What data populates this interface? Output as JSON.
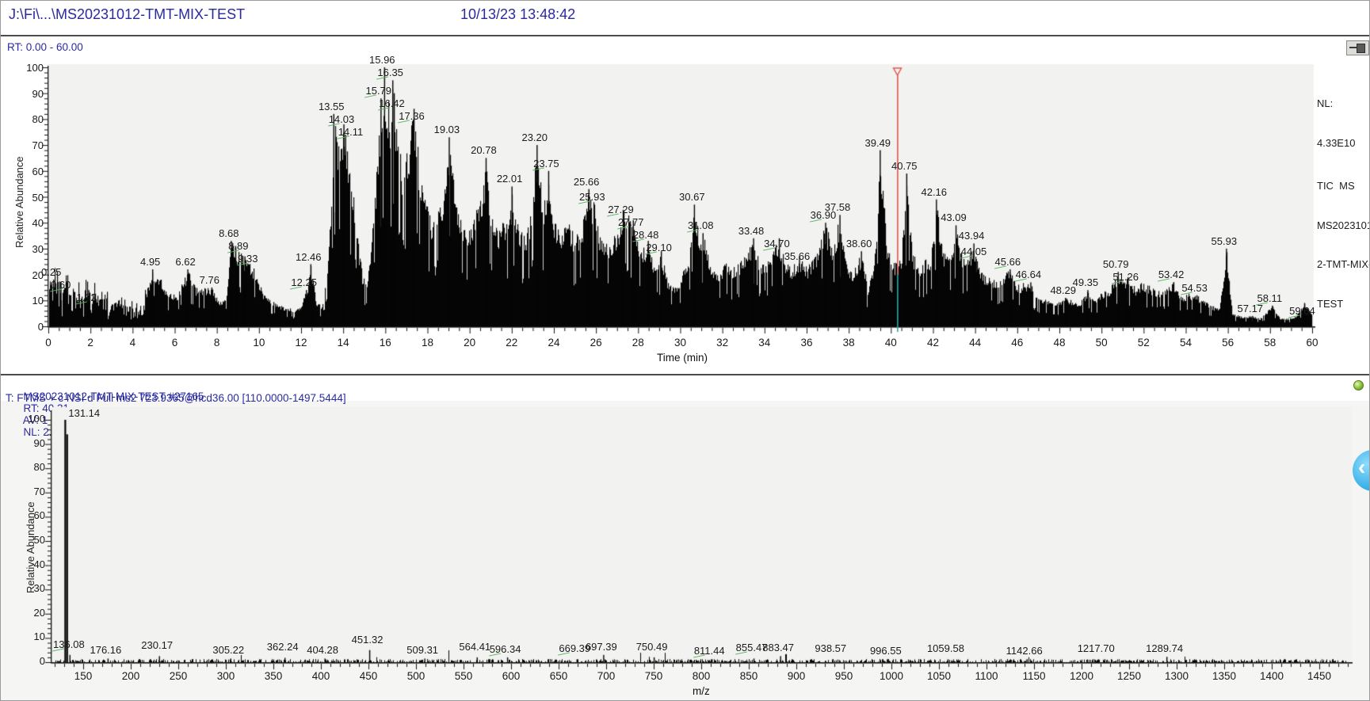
{
  "window": {
    "title_path": "J:\\Fi\\...\\MS20231012-TMT-MIX-TEST",
    "datetime": "10/13/23 13:48:42"
  },
  "colors": {
    "accent_text": "#2a2aa0",
    "peak": "#050505",
    "marker_red": "#e0564c",
    "marker_teal": "#2ba8a6",
    "label_green": "#55b15c",
    "plot_bg": "#f2f2f0",
    "axis": "#111111"
  },
  "chart_data": [
    {
      "id": "tic-chromatogram",
      "type": "area",
      "range_label": "RT: 0.00 - 60.00",
      "xlabel": "Time (min)",
      "ylabel": "Relative Abundance",
      "xlim": [
        0,
        60
      ],
      "ylim": [
        0,
        100
      ],
      "x_major": 2,
      "x_minor": 0.5,
      "y_major": 10,
      "y_minor": 2,
      "nl_lines": [
        "NL:",
        "4.33E10",
        "TIC  MS",
        "MS2023101",
        "2-TMT-MIX-",
        "TEST"
      ],
      "marker_rt": 40.31,
      "peaks": [
        {
          "t": 0.25,
          "h": 18
        },
        {
          "t": 0.6,
          "h": 17,
          "g": 1
        },
        {
          "t": 1.92,
          "h": 14,
          "g": 1
        },
        {
          "t": 4.95,
          "h": 22
        },
        {
          "t": 6.62,
          "h": 22
        },
        {
          "t": 7.76,
          "h": 15
        },
        {
          "t": 8.68,
          "h": 33
        },
        {
          "t": 8.89,
          "h": 31,
          "g": 1
        },
        {
          "t": 9.33,
          "h": 27,
          "g": 1
        },
        {
          "t": 12.25,
          "h": 14,
          "g": 1
        },
        {
          "t": 12.46,
          "h": 24
        },
        {
          "t": 13.55,
          "h": 82
        },
        {
          "t": 14.03,
          "h": 78,
          "g": 1
        },
        {
          "t": 14.11,
          "h": 74,
          "g": 1
        },
        {
          "t": 15.79,
          "h": 88,
          "g": 1
        },
        {
          "t": 15.96,
          "h": 100
        },
        {
          "t": 16.35,
          "h": 95,
          "g": 1
        },
        {
          "t": 16.42,
          "h": 90,
          "g": 1
        },
        {
          "t": 17.36,
          "h": 84,
          "g": 1
        },
        {
          "t": 19.03,
          "h": 73
        },
        {
          "t": 20.78,
          "h": 65
        },
        {
          "t": 22.01,
          "h": 54
        },
        {
          "t": 23.2,
          "h": 70
        },
        {
          "t": 23.75,
          "h": 60,
          "g": 1
        },
        {
          "t": 25.66,
          "h": 53
        },
        {
          "t": 25.93,
          "h": 47,
          "g": 1
        },
        {
          "t": 27.29,
          "h": 45,
          "g": 1
        },
        {
          "t": 27.77,
          "h": 41,
          "g": 1
        },
        {
          "t": 28.48,
          "h": 33,
          "g": 1
        },
        {
          "t": 29.1,
          "h": 29,
          "g": 1
        },
        {
          "t": 30.67,
          "h": 47
        },
        {
          "t": 31.08,
          "h": 36,
          "g": 1
        },
        {
          "t": 33.48,
          "h": 34
        },
        {
          "t": 34.7,
          "h": 34,
          "g": 1
        },
        {
          "t": 35.66,
          "h": 27
        },
        {
          "t": 36.9,
          "h": 40,
          "g": 1
        },
        {
          "t": 37.58,
          "h": 43
        },
        {
          "t": 38.6,
          "h": 29
        },
        {
          "t": 39.49,
          "h": 68
        },
        {
          "t": 40.75,
          "h": 59
        },
        {
          "t": 42.16,
          "h": 49
        },
        {
          "t": 43.09,
          "h": 39
        },
        {
          "t": 43.94,
          "h": 32
        },
        {
          "t": 44.05,
          "h": 26,
          "g": 1
        },
        {
          "t": 45.66,
          "h": 22,
          "g": 1
        },
        {
          "t": 46.64,
          "h": 17,
          "g": 1
        },
        {
          "t": 48.29,
          "h": 11
        },
        {
          "t": 49.35,
          "h": 14
        },
        {
          "t": 50.79,
          "h": 21
        },
        {
          "t": 51.26,
          "h": 19,
          "g": 1
        },
        {
          "t": 53.42,
          "h": 17,
          "g": 1
        },
        {
          "t": 54.53,
          "h": 12,
          "g": 1
        },
        {
          "t": 55.93,
          "h": 30
        },
        {
          "t": 57.17,
          "h": 4
        },
        {
          "t": 58.11,
          "h": 8,
          "g": 1
        },
        {
          "t": 59.64,
          "h": 9,
          "g": 1
        }
      ],
      "envelope": [
        [
          0,
          18
        ],
        [
          0.25,
          18
        ],
        [
          0.6,
          17
        ],
        [
          1,
          15
        ],
        [
          1.5,
          14
        ],
        [
          1.92,
          14
        ],
        [
          2.5,
          12
        ],
        [
          3,
          10
        ],
        [
          3.5,
          9
        ],
        [
          4,
          8
        ],
        [
          4.4,
          7
        ],
        [
          4.95,
          22
        ],
        [
          5.3,
          19
        ],
        [
          5.7,
          13
        ],
        [
          6.1,
          12
        ],
        [
          6.62,
          22
        ],
        [
          7,
          15
        ],
        [
          7.76,
          15
        ],
        [
          8.1,
          9
        ],
        [
          8.45,
          13
        ],
        [
          8.68,
          33
        ],
        [
          8.89,
          31
        ],
        [
          9.33,
          27
        ],
        [
          9.8,
          22
        ],
        [
          10.2,
          13
        ],
        [
          10.6,
          10
        ],
        [
          11,
          8
        ],
        [
          11.5,
          7
        ],
        [
          11.9,
          7
        ],
        [
          12.25,
          14
        ],
        [
          12.46,
          24
        ],
        [
          12.7,
          10
        ],
        [
          13,
          8
        ],
        [
          13.3,
          28
        ],
        [
          13.55,
          82
        ],
        [
          13.7,
          76
        ],
        [
          13.85,
          68
        ],
        [
          14.03,
          78
        ],
        [
          14.11,
          74
        ],
        [
          14.3,
          63
        ],
        [
          14.5,
          53
        ],
        [
          14.7,
          33
        ],
        [
          14.9,
          20
        ],
        [
          15.1,
          16
        ],
        [
          15.3,
          28
        ],
        [
          15.5,
          52
        ],
        [
          15.79,
          88
        ],
        [
          15.96,
          100
        ],
        [
          16.1,
          88
        ],
        [
          16.25,
          86
        ],
        [
          16.35,
          95
        ],
        [
          16.42,
          90
        ],
        [
          16.6,
          76
        ],
        [
          16.8,
          62
        ],
        [
          17,
          68
        ],
        [
          17.36,
          84
        ],
        [
          17.6,
          64
        ],
        [
          17.9,
          54
        ],
        [
          18.2,
          41
        ],
        [
          18.5,
          47
        ],
        [
          18.8,
          54
        ],
        [
          19.03,
          73
        ],
        [
          19.3,
          54
        ],
        [
          19.6,
          41
        ],
        [
          19.9,
          37
        ],
        [
          20.2,
          44
        ],
        [
          20.5,
          49
        ],
        [
          20.78,
          65
        ],
        [
          21,
          47
        ],
        [
          21.3,
          37
        ],
        [
          21.6,
          41
        ],
        [
          21.9,
          44
        ],
        [
          22.01,
          54
        ],
        [
          22.3,
          39
        ],
        [
          22.6,
          35
        ],
        [
          22.9,
          44
        ],
        [
          23.2,
          70
        ],
        [
          23.5,
          47
        ],
        [
          23.75,
          60
        ],
        [
          24,
          43
        ],
        [
          24.3,
          37
        ],
        [
          24.7,
          41
        ],
        [
          25,
          35
        ],
        [
          25.3,
          39
        ],
        [
          25.66,
          53
        ],
        [
          25.93,
          47
        ],
        [
          26.2,
          35
        ],
        [
          26.6,
          31
        ],
        [
          27,
          37
        ],
        [
          27.29,
          45
        ],
        [
          27.77,
          41
        ],
        [
          28.1,
          29
        ],
        [
          28.48,
          33
        ],
        [
          28.8,
          23
        ],
        [
          29.1,
          29
        ],
        [
          29.4,
          17
        ],
        [
          29.8,
          15
        ],
        [
          30.1,
          21
        ],
        [
          30.4,
          29
        ],
        [
          30.67,
          47
        ],
        [
          30.9,
          34
        ],
        [
          31.08,
          36
        ],
        [
          31.4,
          25
        ],
        [
          31.8,
          21
        ],
        [
          32.2,
          25
        ],
        [
          32.6,
          23
        ],
        [
          33,
          27
        ],
        [
          33.48,
          34
        ],
        [
          33.8,
          25
        ],
        [
          34.2,
          27
        ],
        [
          34.7,
          34
        ],
        [
          35,
          25
        ],
        [
          35.3,
          23
        ],
        [
          35.66,
          27
        ],
        [
          36,
          23
        ],
        [
          36.4,
          27
        ],
        [
          36.9,
          40
        ],
        [
          37.2,
          31
        ],
        [
          37.58,
          43
        ],
        [
          37.9,
          25
        ],
        [
          38.2,
          21
        ],
        [
          38.6,
          29
        ],
        [
          38.9,
          15
        ],
        [
          39.2,
          24
        ],
        [
          39.49,
          68
        ],
        [
          39.8,
          33
        ],
        [
          40.1,
          26
        ],
        [
          40.31,
          24
        ],
        [
          40.5,
          28
        ],
        [
          40.75,
          59
        ],
        [
          41,
          30
        ],
        [
          41.3,
          23
        ],
        [
          41.6,
          26
        ],
        [
          41.9,
          28
        ],
        [
          42.16,
          49
        ],
        [
          42.5,
          28
        ],
        [
          42.8,
          30
        ],
        [
          43.09,
          39
        ],
        [
          43.4,
          26
        ],
        [
          43.7,
          28
        ],
        [
          43.94,
          32
        ],
        [
          44.05,
          26
        ],
        [
          44.4,
          20
        ],
        [
          44.8,
          18
        ],
        [
          45.2,
          19
        ],
        [
          45.66,
          22
        ],
        [
          46,
          16
        ],
        [
          46.3,
          17
        ],
        [
          46.64,
          17
        ],
        [
          47,
          12
        ],
        [
          47.4,
          10
        ],
        [
          47.8,
          9
        ],
        [
          48.29,
          12
        ],
        [
          48.7,
          9
        ],
        [
          49,
          10
        ],
        [
          49.35,
          14
        ],
        [
          49.7,
          11
        ],
        [
          50,
          13
        ],
        [
          50.4,
          15
        ],
        [
          50.79,
          21
        ],
        [
          51,
          17
        ],
        [
          51.26,
          19
        ],
        [
          51.6,
          15
        ],
        [
          51.9,
          17
        ],
        [
          52.2,
          16
        ],
        [
          52.6,
          14
        ],
        [
          53,
          15
        ],
        [
          53.42,
          17
        ],
        [
          53.8,
          11
        ],
        [
          54.1,
          13
        ],
        [
          54.53,
          12
        ],
        [
          54.9,
          10
        ],
        [
          55.2,
          8
        ],
        [
          55.6,
          7
        ],
        [
          55.93,
          30
        ],
        [
          56.2,
          5
        ],
        [
          56.6,
          4
        ],
        [
          57.17,
          4
        ],
        [
          57.5,
          3
        ],
        [
          58.11,
          8
        ],
        [
          58.5,
          3
        ],
        [
          58.9,
          3
        ],
        [
          59.2,
          4
        ],
        [
          59.64,
          9
        ],
        [
          60,
          5
        ]
      ]
    },
    {
      "id": "ms2-spectrum",
      "type": "bar",
      "header": {
        "file_scan": "MS20231012-TMT-MIX-TEST #27165",
        "rt": "RT: 40.31",
        "av": "AV: 1",
        "nl": "NL: 2.21E7"
      },
      "filter_line": "T: FTMS + c NSI d Full ms2 723.9365@hcd36.00 [110.0000-1497.5444]",
      "xlabel": "m/z",
      "ylabel": "Relative Abundance",
      "xlim": [
        110,
        1497.5444
      ],
      "ylim": [
        0,
        100
      ],
      "x_major": 50,
      "x_minor": 10,
      "x_label_start": 150,
      "x_label_end": 1450,
      "y_major": 10,
      "y_minor": 2,
      "peaks": [
        {
          "mz": 131.14,
          "h": 100
        },
        {
          "mz": 133.12,
          "h": 94,
          "lab": 0
        },
        {
          "mz": 136.08,
          "h": 3,
          "g": 1
        },
        {
          "mz": 176.16,
          "h": 1.5
        },
        {
          "mz": 230.17,
          "h": 2.5
        },
        {
          "mz": 305.22,
          "h": 1.5
        },
        {
          "mz": 362.24,
          "h": 1.8
        },
        {
          "mz": 404.28,
          "h": 1.5
        },
        {
          "mz": 451.32,
          "h": 5
        },
        {
          "mz": 509.31,
          "h": 1.5
        },
        {
          "mz": 564.41,
          "h": 2
        },
        {
          "mz": 596.34,
          "h": 2,
          "g": 1
        },
        {
          "mz": 669.39,
          "h": 1.2,
          "g": 1
        },
        {
          "mz": 697.39,
          "h": 3
        },
        {
          "mz": 750.49,
          "h": 2
        },
        {
          "mz": 811.44,
          "h": 1.2,
          "g": 1
        },
        {
          "mz": 855.47,
          "h": 1.5,
          "g": 1
        },
        {
          "mz": 883.47,
          "h": 2.5
        },
        {
          "mz": 938.57,
          "h": 1.3
        },
        {
          "mz": 996.55,
          "h": 1.3
        },
        {
          "mz": 1059.58,
          "h": 1.2
        },
        {
          "mz": 1142.66,
          "h": 1.2
        },
        {
          "mz": 1217.7,
          "h": 1.2
        },
        {
          "mz": 1289.74,
          "h": 2.2
        }
      ]
    }
  ]
}
